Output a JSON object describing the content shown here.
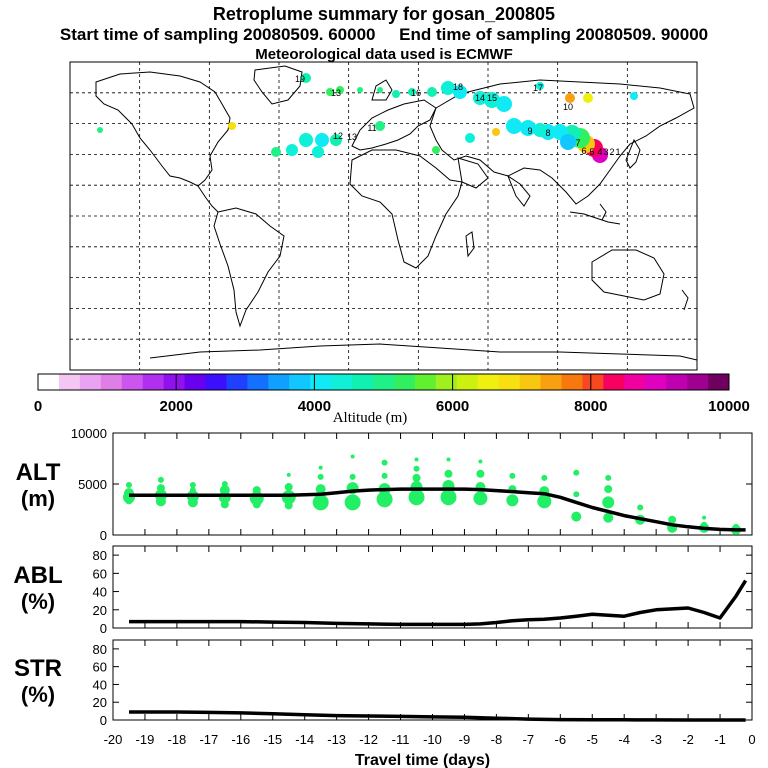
{
  "header": {
    "title": "Retroplume summary for gosan_200805",
    "start_label": "Start time of sampling 20080509. 60000",
    "end_label": "End time of sampling 20080509. 90000",
    "met_label": "Meteorological data used is ECMWF"
  },
  "colorbar": {
    "label": "Altitude (m)",
    "tick_labels": [
      "0",
      "2000",
      "4000",
      "6000",
      "8000",
      "10000"
    ],
    "colors": [
      "#ffffff",
      "#f4c6f4",
      "#eaa3f0",
      "#e07ee8",
      "#cc55ee",
      "#b030f0",
      "#9010f0",
      "#6a00f0",
      "#3c10ff",
      "#2040ff",
      "#1470ff",
      "#10a0ff",
      "#10c8ff",
      "#10eaf5",
      "#10f0d8",
      "#10f0b0",
      "#20f088",
      "#30f060",
      "#60f030",
      "#a0f020",
      "#ccf010",
      "#f0f010",
      "#f8e010",
      "#f8c810",
      "#f8a010",
      "#f87810",
      "#f84820",
      "#f80060",
      "#f000a0",
      "#e000c0",
      "#c000b0",
      "#a00090",
      "#700060"
    ],
    "colors_note": "33 color bins from 0 to 10000 m"
  },
  "map": {
    "description_labels_on_map": [
      "19",
      "13",
      "18",
      "16",
      "15",
      "14",
      "13",
      "12",
      "11",
      "10",
      "9",
      "8",
      "7",
      "6",
      "5",
      "4",
      "3",
      "2",
      "1",
      "17"
    ]
  },
  "chart_data": [
    {
      "type": "line",
      "name": "ALT",
      "ylabel_line1": "ALT",
      "ylabel_line2": "(m)",
      "ylim": [
        0,
        10000
      ],
      "yticks": [
        "0",
        "5000",
        "10000"
      ],
      "x": [
        -19.5,
        -19,
        -18.5,
        -18,
        -17.5,
        -17,
        -16.5,
        -16,
        -15.5,
        -15,
        -14.5,
        -14,
        -13.5,
        -13,
        -12.5,
        -12,
        -11.5,
        -11,
        -10.5,
        -10,
        -9.5,
        -9,
        -8.5,
        -8,
        -7.5,
        -7,
        -6.5,
        -6,
        -5.5,
        -5,
        -4.5,
        -4,
        -3.5,
        -3,
        -2.5,
        -2,
        -1.5,
        -1,
        -0.5,
        -0.2
      ],
      "values": [
        3900,
        3900,
        3900,
        3900,
        3900,
        3900,
        3900,
        3900,
        3900,
        3900,
        3900,
        3950,
        4000,
        4150,
        4300,
        4400,
        4450,
        4500,
        4500,
        4500,
        4500,
        4500,
        4450,
        4350,
        4250,
        4150,
        4050,
        3700,
        3200,
        2700,
        2300,
        1900,
        1600,
        1300,
        1000,
        800,
        650,
        550,
        500,
        500
      ],
      "scatter_series": {
        "name": "cluster altitudes",
        "color": "#22ee66",
        "points": [
          [
            -19.5,
            4100,
            5
          ],
          [
            -19.5,
            3700,
            6
          ],
          [
            -19.5,
            3400,
            4
          ],
          [
            -19.5,
            4900,
            3
          ],
          [
            -18.5,
            3900,
            6
          ],
          [
            -18.5,
            3300,
            5
          ],
          [
            -18.5,
            4600,
            4
          ],
          [
            -18.5,
            5400,
            3
          ],
          [
            -17.5,
            3800,
            6
          ],
          [
            -17.5,
            3200,
            5
          ],
          [
            -17.5,
            4900,
            3
          ],
          [
            -17.5,
            4400,
            3
          ],
          [
            -16.5,
            3700,
            6
          ],
          [
            -16.5,
            4400,
            5
          ],
          [
            -16.5,
            3000,
            4
          ],
          [
            -16.5,
            5000,
            3
          ],
          [
            -15.5,
            3600,
            7
          ],
          [
            -15.5,
            4400,
            4
          ],
          [
            -15.5,
            3000,
            4
          ],
          [
            -14.5,
            3700,
            7
          ],
          [
            -14.5,
            4700,
            4
          ],
          [
            -14.5,
            2900,
            4
          ],
          [
            -14.5,
            5900,
            2
          ],
          [
            -13.5,
            3200,
            8
          ],
          [
            -13.5,
            4500,
            5
          ],
          [
            -13.5,
            5700,
            3
          ],
          [
            -13.5,
            6600,
            2
          ],
          [
            -12.5,
            3200,
            8
          ],
          [
            -12.5,
            4600,
            6
          ],
          [
            -12.5,
            5700,
            3
          ],
          [
            -12.5,
            7700,
            2
          ],
          [
            -11.5,
            3500,
            8
          ],
          [
            -11.5,
            4500,
            6
          ],
          [
            -11.5,
            5800,
            3
          ],
          [
            -11.5,
            7100,
            3
          ],
          [
            -10.5,
            3700,
            8
          ],
          [
            -10.5,
            4700,
            6
          ],
          [
            -10.5,
            5600,
            4
          ],
          [
            -10.5,
            6500,
            3
          ],
          [
            -10.5,
            7400,
            2
          ],
          [
            -9.5,
            3700,
            8
          ],
          [
            -9.5,
            4800,
            6
          ],
          [
            -9.5,
            6000,
            4
          ],
          [
            -9.5,
            7400,
            2
          ],
          [
            -8.5,
            3600,
            7
          ],
          [
            -8.5,
            4700,
            5
          ],
          [
            -8.5,
            6000,
            4
          ],
          [
            -8.5,
            7200,
            2
          ],
          [
            -7.5,
            3400,
            6
          ],
          [
            -7.5,
            4500,
            4
          ],
          [
            -7.5,
            5800,
            3
          ],
          [
            -6.5,
            3300,
            7
          ],
          [
            -6.5,
            4300,
            5
          ],
          [
            -6.5,
            5600,
            3
          ],
          [
            -5.5,
            1800,
            5
          ],
          [
            -5.5,
            4000,
            3
          ],
          [
            -5.5,
            6100,
            3
          ],
          [
            -4.5,
            3200,
            6
          ],
          [
            -4.5,
            1700,
            5
          ],
          [
            -4.5,
            4500,
            4
          ],
          [
            -4.5,
            5600,
            3
          ],
          [
            -3.5,
            1500,
            5
          ],
          [
            -3.5,
            2700,
            3
          ],
          [
            -2.5,
            700,
            5
          ],
          [
            -2.5,
            1500,
            4
          ],
          [
            -1.5,
            700,
            5
          ],
          [
            -1.5,
            1000,
            3
          ],
          [
            -1.5,
            1700,
            2
          ],
          [
            -0.5,
            500,
            5
          ],
          [
            -0.5,
            800,
            3
          ]
        ]
      }
    },
    {
      "type": "line",
      "name": "ABL",
      "ylabel_line1": "ABL",
      "ylabel_line2": "(%)",
      "ylim": [
        0,
        90
      ],
      "yticks": [
        "0",
        "20",
        "40",
        "60",
        "80"
      ],
      "x": [
        -19.5,
        -19,
        -18,
        -17,
        -16,
        -15,
        -14,
        -13,
        -12,
        -11,
        -10,
        -9,
        -8.5,
        -8,
        -7.5,
        -7,
        -6.5,
        -6,
        -5.5,
        -5,
        -4.5,
        -4,
        -3.5,
        -3,
        -2.5,
        -2,
        -1.5,
        -1,
        -0.5,
        -0.2
      ],
      "values": [
        7,
        7,
        7,
        7,
        7,
        6.5,
        6,
        5,
        4.5,
        4,
        4,
        4,
        4.5,
        6,
        8,
        9,
        9.5,
        11,
        13,
        15,
        14,
        13,
        17,
        20,
        21,
        22,
        17,
        11,
        35,
        52
      ]
    },
    {
      "type": "line",
      "name": "STR",
      "ylabel_line1": "STR",
      "ylabel_line2": "(%)",
      "ylim": [
        0,
        90
      ],
      "yticks": [
        "0",
        "20",
        "40",
        "60",
        "80"
      ],
      "x": [
        -19.5,
        -19,
        -18,
        -17,
        -16,
        -15,
        -14,
        -13,
        -12,
        -11,
        -10,
        -9,
        -8,
        -7,
        -6,
        -5,
        -4,
        -3,
        -2,
        -1,
        -0.2
      ],
      "values": [
        9,
        9,
        9,
        8.5,
        8,
        7,
        6,
        5,
        4.5,
        4,
        3.5,
        3,
        2,
        1,
        0.5,
        0.3,
        0.2,
        0.1,
        0,
        0,
        0
      ],
      "xlabel": "Travel time (days)",
      "xticks": [
        "-20",
        "-19",
        "-18",
        "-17",
        "-16",
        "-15",
        "-14",
        "-13",
        "-12",
        "-11",
        "-10",
        "-9",
        "-8",
        "-7",
        "-6",
        "-5",
        "-4",
        "-3",
        "-2",
        "-1",
        "0"
      ],
      "xlim": [
        -20,
        0
      ]
    }
  ]
}
